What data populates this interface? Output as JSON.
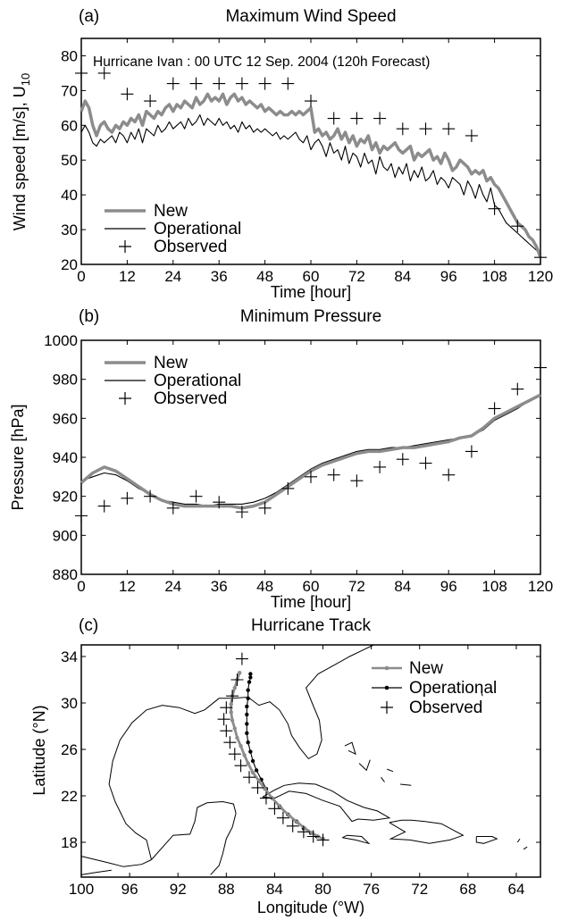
{
  "chart_data": [
    {
      "type": "line",
      "panel_label": "(a)",
      "title": "Maximum Wind Speed",
      "annotation": "Hurricane Ivan : 00 UTC 12 Sep. 2004 (120h Forecast)",
      "xlabel": "Time [hour]",
      "ylabel": "Wind speed [m/s], U",
      "ylabel_sub": "10",
      "xlim": [
        0,
        120
      ],
      "ylim": [
        20,
        85
      ],
      "xticks": [
        0,
        12,
        24,
        36,
        48,
        60,
        72,
        84,
        96,
        108,
        120
      ],
      "yticks": [
        20,
        30,
        40,
        50,
        60,
        70,
        80
      ],
      "legend_position": "lower-left",
      "series": [
        {
          "name": "New",
          "style": "thick-gray-line",
          "color": "#8c8c8c",
          "x": [
            0,
            1,
            2,
            3,
            4,
            5,
            6,
            7,
            8,
            9,
            10,
            11,
            12,
            13,
            14,
            15,
            16,
            17,
            18,
            19,
            20,
            21,
            22,
            23,
            24,
            25,
            26,
            27,
            28,
            29,
            30,
            31,
            32,
            33,
            34,
            35,
            36,
            37,
            38,
            39,
            40,
            41,
            42,
            43,
            44,
            45,
            46,
            47,
            48,
            49,
            50,
            51,
            52,
            53,
            54,
            55,
            56,
            57,
            58,
            59,
            60,
            61,
            62,
            63,
            64,
            65,
            66,
            67,
            68,
            69,
            70,
            71,
            72,
            73,
            74,
            75,
            76,
            77,
            78,
            79,
            80,
            81,
            82,
            83,
            84,
            85,
            86,
            87,
            88,
            89,
            90,
            91,
            92,
            93,
            94,
            95,
            96,
            97,
            98,
            99,
            100,
            101,
            102,
            103,
            104,
            105,
            106,
            107,
            108,
            109,
            110,
            111,
            112,
            113,
            114,
            115,
            116,
            117,
            118,
            119,
            120
          ],
          "values": [
            64,
            67,
            65,
            60,
            57,
            60,
            61,
            59,
            58,
            60,
            59,
            61,
            60,
            62,
            61,
            63,
            60,
            64,
            63,
            62,
            64,
            63,
            65,
            66,
            64,
            66,
            65,
            67,
            66,
            65,
            68,
            66,
            67,
            69,
            67,
            68,
            67,
            69,
            66,
            68,
            69,
            67,
            68,
            66,
            67,
            66,
            65,
            66,
            64,
            65,
            64,
            63,
            64,
            63,
            63,
            64,
            63,
            64,
            63,
            64,
            65,
            58,
            59,
            57,
            58,
            56,
            57,
            59,
            56,
            58,
            55,
            57,
            54,
            56,
            55,
            57,
            53,
            55,
            52,
            54,
            53,
            54,
            55,
            53,
            52,
            53,
            54,
            50,
            52,
            51,
            52,
            53,
            50,
            51,
            49,
            52,
            50,
            47,
            48,
            50,
            49,
            48,
            46,
            47,
            46,
            47,
            44,
            45,
            43,
            42,
            40,
            38,
            36,
            34,
            32,
            31,
            30,
            28,
            27,
            25,
            22
          ]
        },
        {
          "name": "Operational",
          "style": "thin-black-line",
          "color": "#000000",
          "x": [
            0,
            1,
            2,
            3,
            4,
            5,
            6,
            7,
            8,
            9,
            10,
            11,
            12,
            13,
            14,
            15,
            16,
            17,
            18,
            19,
            20,
            21,
            22,
            23,
            24,
            25,
            26,
            27,
            28,
            29,
            30,
            31,
            32,
            33,
            34,
            35,
            36,
            37,
            38,
            39,
            40,
            41,
            42,
            43,
            44,
            45,
            46,
            47,
            48,
            49,
            50,
            51,
            52,
            53,
            54,
            55,
            56,
            57,
            58,
            59,
            60,
            61,
            62,
            63,
            64,
            65,
            66,
            67,
            68,
            69,
            70,
            71,
            72,
            73,
            74,
            75,
            76,
            77,
            78,
            79,
            80,
            81,
            82,
            83,
            84,
            85,
            86,
            87,
            88,
            89,
            90,
            91,
            92,
            93,
            94,
            95,
            96,
            97,
            98,
            99,
            100,
            101,
            102,
            103,
            104,
            105,
            106,
            107,
            108,
            109,
            110,
            111,
            112,
            113,
            114,
            115,
            116,
            117,
            118,
            119,
            120
          ],
          "values": [
            58,
            60,
            58,
            55,
            54,
            56,
            55,
            56,
            57,
            55,
            58,
            57,
            55,
            58,
            56,
            59,
            55,
            59,
            58,
            57,
            60,
            58,
            59,
            61,
            59,
            60,
            61,
            59,
            62,
            60,
            61,
            63,
            60,
            62,
            61,
            60,
            62,
            60,
            61,
            59,
            60,
            58,
            61,
            59,
            60,
            58,
            59,
            58,
            59,
            58,
            57,
            58,
            56,
            57,
            56,
            57,
            58,
            56,
            55,
            57,
            53,
            55,
            56,
            54,
            51,
            55,
            52,
            53,
            50,
            54,
            49,
            52,
            51,
            48,
            52,
            49,
            50,
            46,
            51,
            48,
            47,
            49,
            45,
            48,
            46,
            49,
            44,
            47,
            45,
            48,
            44,
            45,
            47,
            43,
            45,
            44,
            42,
            45,
            44,
            43,
            40,
            44,
            42,
            39,
            43,
            40,
            38,
            42,
            37,
            36,
            34,
            32,
            31,
            30,
            29,
            28,
            27,
            26,
            25,
            24,
            23
          ]
        },
        {
          "name": "Observed",
          "style": "plus-markers",
          "color": "#000000",
          "x": [
            0,
            6,
            12,
            18,
            24,
            30,
            36,
            42,
            48,
            54,
            60,
            66,
            72,
            78,
            84,
            90,
            96,
            102,
            108,
            114,
            120
          ],
          "values": [
            75,
            75,
            69,
            67,
            72,
            72,
            72,
            72,
            72,
            72,
            67,
            62,
            62,
            62,
            59,
            59,
            59,
            57,
            36,
            31,
            22
          ]
        }
      ]
    },
    {
      "type": "line",
      "panel_label": "(b)",
      "title": "Minimum Pressure",
      "xlabel": "Time [hour]",
      "ylabel": "Pressure [hPa]",
      "xlim": [
        0,
        120
      ],
      "ylim": [
        880,
        1000
      ],
      "xticks": [
        0,
        12,
        24,
        36,
        48,
        60,
        72,
        84,
        96,
        108,
        120
      ],
      "yticks": [
        880,
        900,
        920,
        940,
        960,
        980,
        1000
      ],
      "legend_position": "top-left",
      "series": [
        {
          "name": "New",
          "style": "thick-gray-line",
          "color": "#8c8c8c",
          "x": [
            0,
            3,
            6,
            9,
            12,
            15,
            18,
            21,
            24,
            27,
            30,
            33,
            36,
            39,
            42,
            45,
            48,
            51,
            54,
            57,
            60,
            63,
            66,
            69,
            72,
            75,
            78,
            81,
            84,
            87,
            90,
            93,
            96,
            99,
            102,
            105,
            108,
            111,
            114,
            117,
            120
          ],
          "values": [
            927,
            932,
            935,
            933,
            929,
            925,
            921,
            918,
            916,
            915,
            915,
            915,
            915,
            915,
            914,
            915,
            917,
            921,
            925,
            929,
            933,
            936,
            938,
            940,
            942,
            943,
            943,
            944,
            945,
            945,
            946,
            947,
            948,
            950,
            951,
            955,
            960,
            963,
            966,
            969,
            972
          ]
        },
        {
          "name": "Operational",
          "style": "thin-black-line",
          "color": "#000000",
          "x": [
            0,
            3,
            6,
            9,
            12,
            15,
            18,
            21,
            24,
            27,
            30,
            33,
            36,
            39,
            42,
            45,
            48,
            51,
            54,
            57,
            60,
            63,
            66,
            69,
            72,
            75,
            78,
            81,
            84,
            87,
            90,
            93,
            96,
            99,
            102,
            105,
            108,
            111,
            114,
            117,
            120
          ],
          "values": [
            928,
            930,
            932,
            931,
            928,
            924,
            921,
            918,
            917,
            916,
            916,
            915,
            916,
            916,
            916,
            917,
            919,
            922,
            926,
            930,
            934,
            937,
            939,
            941,
            943,
            944,
            944,
            945,
            945,
            946,
            947,
            948,
            949,
            950,
            951,
            954,
            959,
            962,
            965,
            969,
            972
          ]
        },
        {
          "name": "Observed",
          "style": "plus-markers",
          "color": "#000000",
          "x": [
            0,
            6,
            12,
            18,
            24,
            30,
            36,
            42,
            48,
            54,
            60,
            66,
            72,
            78,
            84,
            90,
            96,
            102,
            108,
            114,
            120
          ],
          "values": [
            910,
            915,
            919,
            920,
            914,
            920,
            917,
            912,
            914,
            924,
            930,
            931,
            928,
            935,
            939,
            937,
            931,
            943,
            965,
            975,
            986
          ]
        }
      ]
    },
    {
      "type": "line",
      "panel_label": "(c)",
      "title": "Hurricane Track",
      "xlabel": "Longitude (°W)",
      "ylabel": "Latitude (°N)",
      "xlim": [
        100,
        62
      ],
      "ylim": [
        15,
        35
      ],
      "xticks": [
        100,
        96,
        92,
        88,
        84,
        80,
        76,
        72,
        68,
        64
      ],
      "yticks": [
        18,
        22,
        26,
        30,
        34
      ],
      "legend_position": "top-right",
      "series": [
        {
          "name": "New",
          "style": "gray-line-dots",
          "color": "#8c8c8c",
          "x": [
            80.0,
            80.4,
            80.9,
            81.5,
            82.1,
            82.8,
            83.5,
            84.2,
            84.8,
            85.3,
            85.8,
            86.2,
            86.5,
            86.8,
            87.1,
            87.3,
            87.5,
            87.6,
            87.6,
            87.5,
            87.3,
            87.1,
            86.9
          ],
          "values": [
            18.3,
            18.5,
            18.8,
            19.2,
            19.7,
            20.3,
            21.0,
            21.8,
            22.6,
            23.3,
            24.0,
            24.8,
            25.5,
            26.3,
            27.0,
            27.8,
            28.5,
            29.2,
            29.9,
            30.6,
            31.3,
            32.0,
            32.6
          ]
        },
        {
          "name": "Operational",
          "style": "black-line-dots",
          "color": "#000000",
          "x": [
            80.0,
            80.5,
            81.0,
            81.6,
            82.2,
            82.9,
            83.6,
            84.2,
            84.7,
            85.1,
            85.5,
            85.8,
            86.0,
            86.2,
            86.3,
            86.3,
            86.3,
            86.3,
            86.2,
            86.2,
            86.1,
            86.0,
            86.0
          ],
          "values": [
            18.3,
            18.5,
            18.8,
            19.2,
            19.8,
            20.4,
            21.1,
            21.8,
            22.6,
            23.4,
            24.2,
            25.0,
            25.8,
            26.6,
            27.4,
            28.2,
            29.0,
            29.7,
            30.4,
            31.1,
            31.8,
            32.2,
            32.5
          ]
        },
        {
          "name": "Observed",
          "style": "plus-markers",
          "color": "#000000",
          "x": [
            80.0,
            80.8,
            81.6,
            82.5,
            83.3,
            84.0,
            84.7,
            85.4,
            86.1,
            86.8,
            87.3,
            87.7,
            88.0,
            88.2,
            88.0,
            87.5,
            87.1,
            86.7
          ],
          "values": [
            18.2,
            18.5,
            18.9,
            19.4,
            20.1,
            20.9,
            21.8,
            22.7,
            23.6,
            24.6,
            25.6,
            26.6,
            27.6,
            28.6,
            29.6,
            30.6,
            32.0,
            33.8
          ]
        }
      ]
    }
  ]
}
